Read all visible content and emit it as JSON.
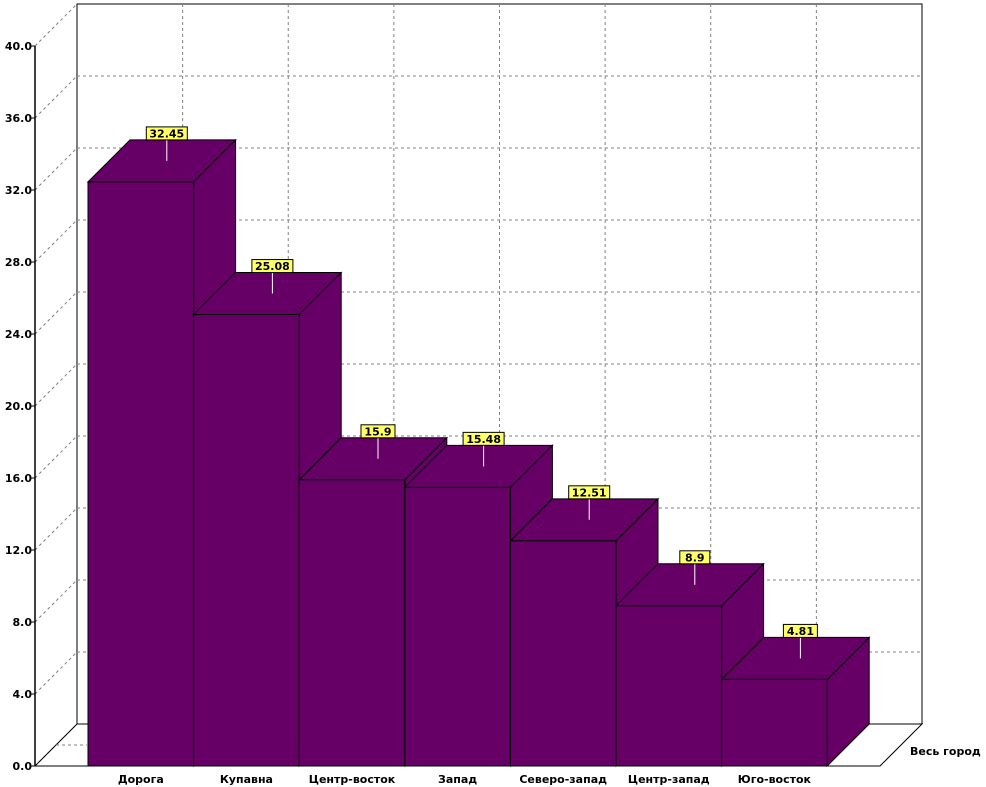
{
  "chart_data": {
    "type": "bar",
    "categories": [
      "Дорога",
      "Купавна",
      "Центр-восток",
      "Запад",
      "Северо-запад",
      "Центр-запад",
      "Юго-восток"
    ],
    "series": [
      {
        "name": "Весь город",
        "values": [
          32.45,
          25.08,
          15.9,
          15.48,
          12.51,
          8.9,
          4.81
        ]
      }
    ],
    "value_labels": [
      "32.45",
      "25.08",
      "15.9",
      "15.48",
      "12.51",
      "8.9",
      "4.81"
    ],
    "y_ticks": [
      "0.0",
      "4.0",
      "8.0",
      "12.0",
      "16.0",
      "20.0",
      "24.0",
      "28.0",
      "32.0",
      "36.0",
      "40.0"
    ],
    "ylim": [
      0,
      40
    ],
    "grid": true,
    "three_d": true,
    "title": "",
    "xlabel": "",
    "ylabel": "",
    "colors": {
      "bar": "#660066",
      "label_bg": "#ffff66",
      "grid": "#808080",
      "axis": "#000000"
    }
  }
}
